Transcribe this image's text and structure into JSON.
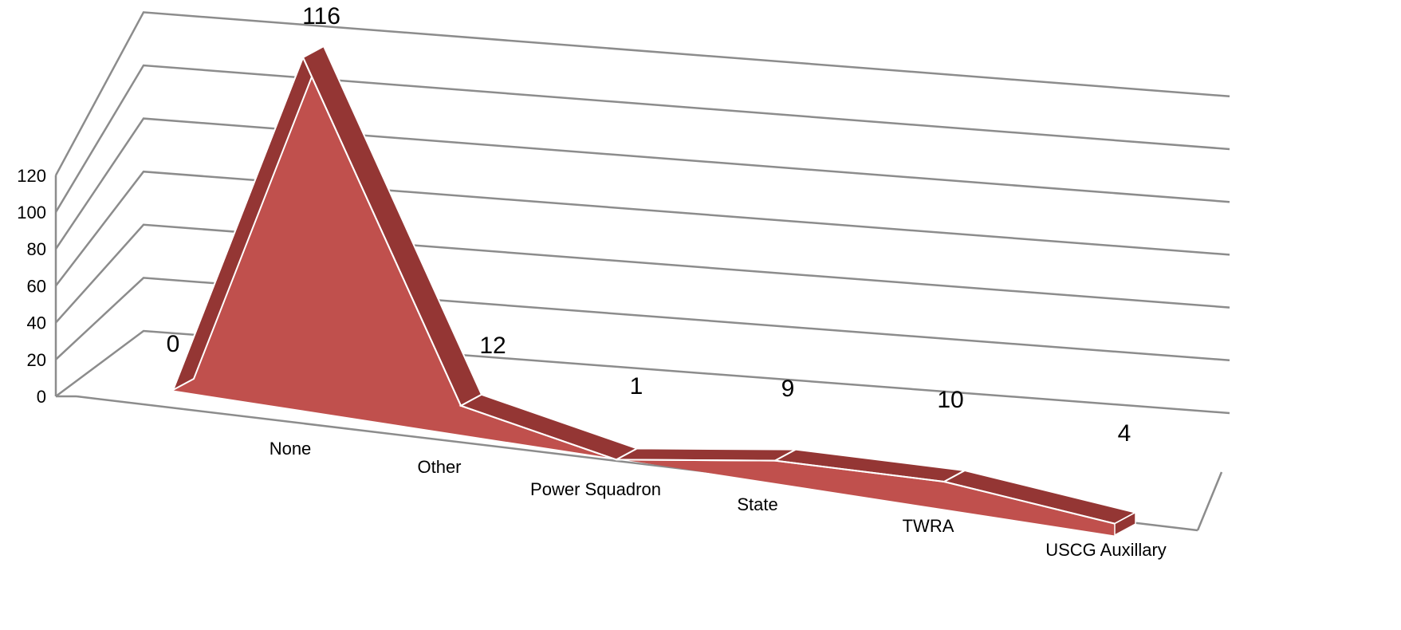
{
  "chart_data": {
    "type": "area",
    "title": "",
    "xlabel": "",
    "ylabel": "",
    "categories": [
      "None",
      "Other",
      "Power Squadron",
      "State",
      "TWRA",
      "USCG Auxillary"
    ],
    "x": [
      "",
      "None",
      "Other",
      "Power Squadron",
      "State",
      "TWRA",
      "USCG Auxillary"
    ],
    "values": [
      0,
      116,
      12,
      1,
      9,
      10,
      4
    ],
    "ylim": [
      0,
      120
    ],
    "yticks": [
      "0",
      "20",
      "40",
      "60",
      "80",
      "100",
      "120"
    ],
    "grid": true,
    "legend": "none",
    "style": "3d-area",
    "colors": {
      "front": "#c0504d",
      "side": "#943634",
      "edge": "#ffffff",
      "grid": "#8c8c8c"
    }
  }
}
